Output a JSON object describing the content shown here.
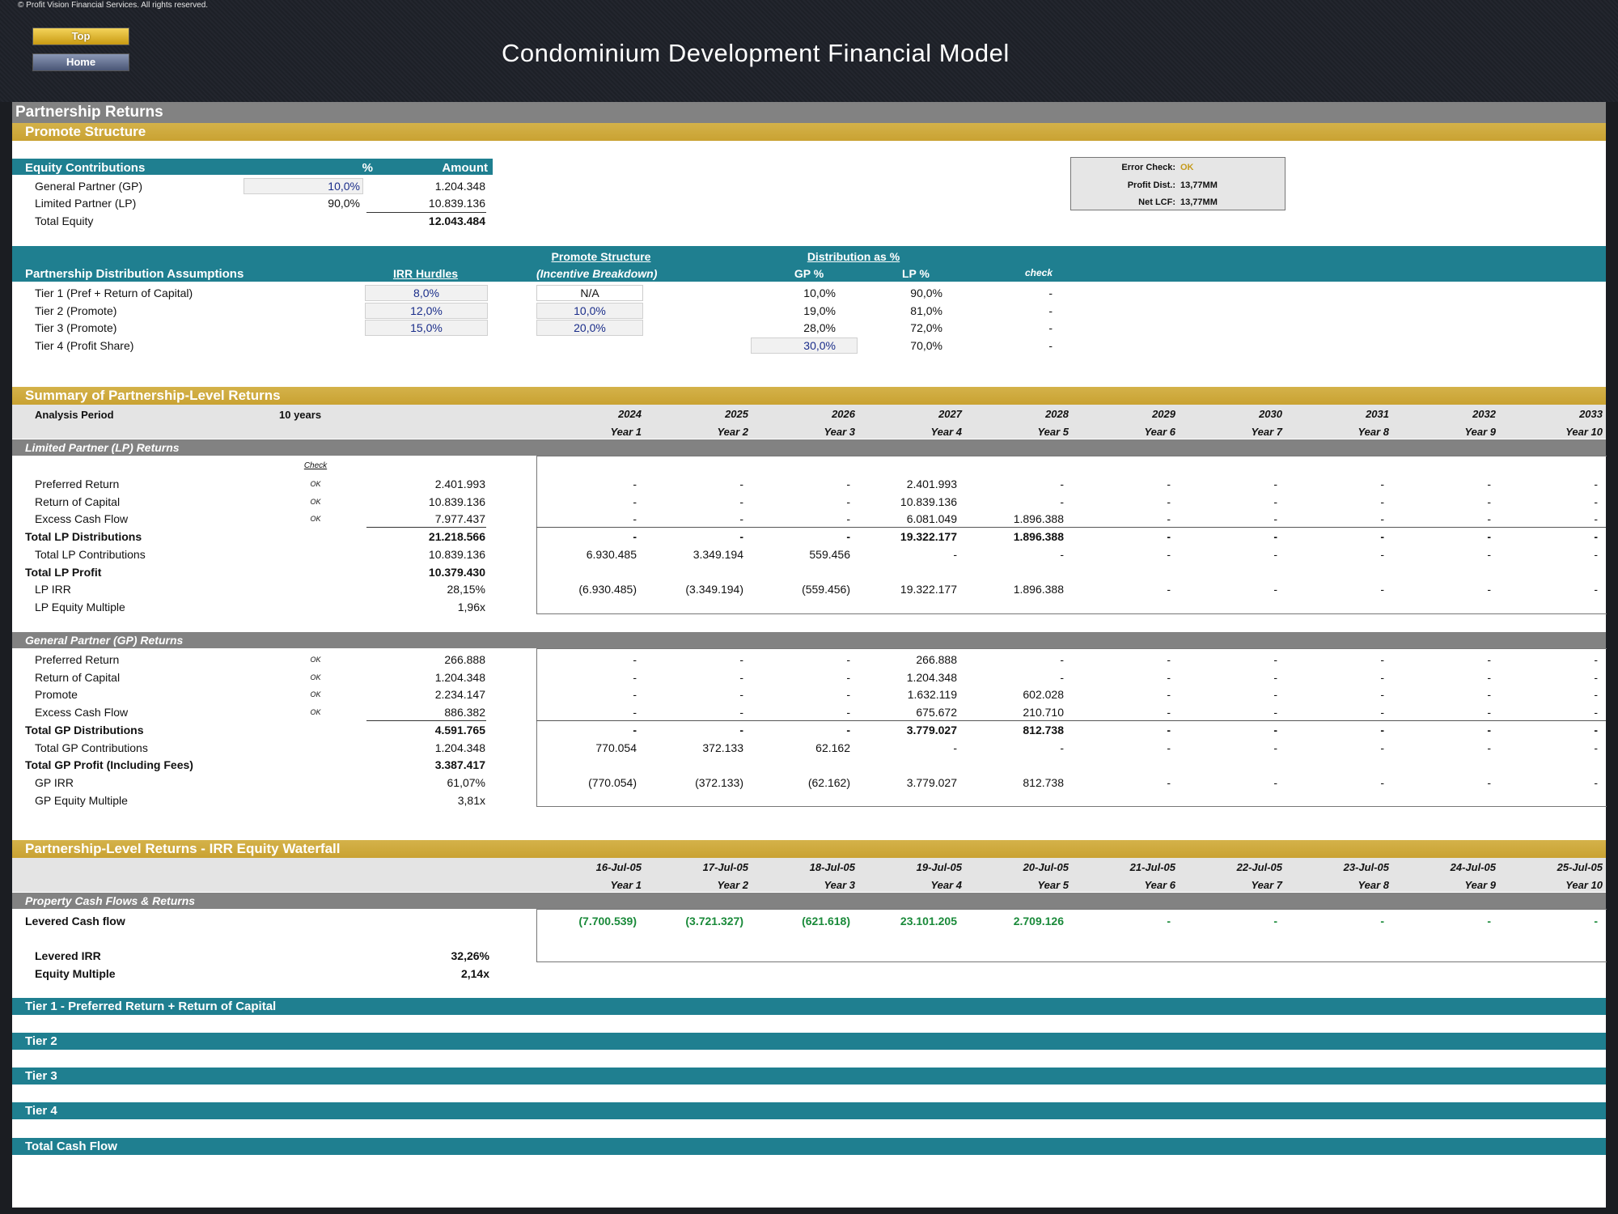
{
  "header": {
    "copyright": "© Profit Vision Financial Services. All rights reserved.",
    "title": "Condominium Development Financial Model",
    "top_button": "Top",
    "home_button": "Home"
  },
  "sections": {
    "partnership_returns": "Partnership Returns",
    "promote_structure": "Promote Structure",
    "summary": "Summary of Partnership-Level Returns",
    "waterfall": "Partnership-Level Returns - IRR Equity Waterfall",
    "tier1": "Tier 1 - Preferred Return + Return of Capital",
    "tier2": "Tier 2",
    "tier3": "Tier 3",
    "tier4": "Tier 4",
    "total_cf": "Total Cash Flow"
  },
  "equity": {
    "header": "Equity Contributions",
    "pct_header": "%",
    "amount_header": "Amount",
    "rows": [
      {
        "label": "General Partner (GP)",
        "pct": "10,0%",
        "amount": "1.204.348"
      },
      {
        "label": "Limited Partner (LP)",
        "pct": "90,0%",
        "amount": "10.839.136"
      }
    ],
    "total_label": "Total Equity",
    "total_amount": "12.043.484"
  },
  "checks": {
    "error_label": "Error Check:",
    "error_value": "OK",
    "profit_label": "Profit Dist.:",
    "profit_value": "13,77MM",
    "netlcf_label": "Net LCF:",
    "netlcf_value": "13,77MM"
  },
  "distribution": {
    "promote_structure_header": "Promote Structure",
    "distribution_header": "Distribution as %",
    "title": "Partnership Distribution Assumptions",
    "irr_header": "IRR Hurdles",
    "incentive_header": "(Incentive Breakdown)",
    "gp_header": "GP %",
    "lp_header": "LP %",
    "check_header": "check",
    "rows": [
      {
        "label": "Tier 1 (Pref + Return of Capital)",
        "irr": "8,0%",
        "incentive": "N/A",
        "gp": "10,0%",
        "lp": "90,0%",
        "check": "-"
      },
      {
        "label": "Tier 2 (Promote)",
        "irr": "12,0%",
        "incentive": "10,0%",
        "gp": "19,0%",
        "lp": "81,0%",
        "check": "-"
      },
      {
        "label": "Tier 3 (Promote)",
        "irr": "15,0%",
        "incentive": "20,0%",
        "gp": "28,0%",
        "lp": "72,0%",
        "check": "-"
      },
      {
        "label": "Tier 4 (Profit Share)",
        "irr": "",
        "incentive": "",
        "gp": "30,0%",
        "lp": "70,0%",
        "check": "-"
      }
    ]
  },
  "summary": {
    "analysis_label": "Analysis Period",
    "analysis_value": "10 years",
    "years": [
      "2024",
      "2025",
      "2026",
      "2027",
      "2028",
      "2029",
      "2030",
      "2031",
      "2032",
      "2033"
    ],
    "year_labels": [
      "Year 1",
      "Year 2",
      "Year 3",
      "Year 4",
      "Year 5",
      "Year 6",
      "Year 7",
      "Year 8",
      "Year 9",
      "Year 10"
    ],
    "lp_title": "Limited Partner (LP) Returns",
    "check_label": "Check",
    "lp_rows": [
      {
        "label": "Preferred Return",
        "check": "OK",
        "total": "2.401.993",
        "vals": [
          "-",
          "-",
          "-",
          "2.401.993",
          "-",
          "-",
          "-",
          "-",
          "-",
          "-"
        ],
        "bold": false
      },
      {
        "label": "Return of Capital",
        "check": "OK",
        "total": "10.839.136",
        "vals": [
          "-",
          "-",
          "-",
          "10.839.136",
          "-",
          "-",
          "-",
          "-",
          "-",
          "-"
        ],
        "bold": false
      },
      {
        "label": "Excess Cash Flow",
        "check": "OK",
        "total": "7.977.437",
        "vals": [
          "-",
          "-",
          "-",
          "6.081.049",
          "1.896.388",
          "-",
          "-",
          "-",
          "-",
          "-"
        ],
        "bold": false
      },
      {
        "label": "Total LP Distributions",
        "check": "",
        "total": "21.218.566",
        "vals": [
          "-",
          "-",
          "-",
          "19.322.177",
          "1.896.388",
          "-",
          "-",
          "-",
          "-",
          "-"
        ],
        "bold": true
      },
      {
        "label": "Total LP Contributions",
        "check": "",
        "total": "10.839.136",
        "vals": [
          "6.930.485",
          "3.349.194",
          "559.456",
          "-",
          "-",
          "-",
          "-",
          "-",
          "-",
          "-"
        ],
        "bold": false
      },
      {
        "label": "Total LP Profit",
        "check": "",
        "total": "10.379.430",
        "vals": [
          "",
          "",
          "",
          "",
          "",
          "",
          "",
          "",
          "",
          ""
        ],
        "bold": true
      },
      {
        "label": "LP IRR",
        "check": "",
        "total": "28,15%",
        "vals": [
          "(6.930.485)",
          "(3.349.194)",
          "(559.456)",
          "19.322.177",
          "1.896.388",
          "-",
          "-",
          "-",
          "-",
          "-"
        ],
        "bold": false
      },
      {
        "label": "LP Equity Multiple",
        "check": "",
        "total": "1,96x",
        "vals": [
          "",
          "",
          "",
          "",
          "",
          "",
          "",
          "",
          "",
          ""
        ],
        "bold": false
      }
    ],
    "gp_title": "General Partner (GP) Returns",
    "gp_rows": [
      {
        "label": "Preferred Return",
        "check": "OK",
        "total": "266.888",
        "vals": [
          "-",
          "-",
          "-",
          "266.888",
          "-",
          "-",
          "-",
          "-",
          "-",
          "-"
        ],
        "bold": false
      },
      {
        "label": "Return of Capital",
        "check": "OK",
        "total": "1.204.348",
        "vals": [
          "-",
          "-",
          "-",
          "1.204.348",
          "-",
          "-",
          "-",
          "-",
          "-",
          "-"
        ],
        "bold": false
      },
      {
        "label": "Promote",
        "check": "OK",
        "total": "2.234.147",
        "vals": [
          "-",
          "-",
          "-",
          "1.632.119",
          "602.028",
          "-",
          "-",
          "-",
          "-",
          "-"
        ],
        "bold": false
      },
      {
        "label": "Excess Cash Flow",
        "check": "OK",
        "total": "886.382",
        "vals": [
          "-",
          "-",
          "-",
          "675.672",
          "210.710",
          "-",
          "-",
          "-",
          "-",
          "-"
        ],
        "bold": false
      },
      {
        "label": "Total GP Distributions",
        "check": "",
        "total": "4.591.765",
        "vals": [
          "-",
          "-",
          "-",
          "3.779.027",
          "812.738",
          "-",
          "-",
          "-",
          "-",
          "-"
        ],
        "bold": true
      },
      {
        "label": "Total GP Contributions",
        "check": "",
        "total": "1.204.348",
        "vals": [
          "770.054",
          "372.133",
          "62.162",
          "-",
          "-",
          "-",
          "-",
          "-",
          "-",
          "-"
        ],
        "bold": false
      },
      {
        "label": "Total GP Profit (Including Fees)",
        "check": "",
        "total": "3.387.417",
        "vals": [
          "",
          "",
          "",
          "",
          "",
          "",
          "",
          "",
          "",
          ""
        ],
        "bold": true
      },
      {
        "label": "GP IRR",
        "check": "",
        "total": "61,07%",
        "vals": [
          "(770.054)",
          "(372.133)",
          "(62.162)",
          "3.779.027",
          "812.738",
          "-",
          "-",
          "-",
          "-",
          "-"
        ],
        "bold": false
      },
      {
        "label": "GP Equity Multiple",
        "check": "",
        "total": "3,81x",
        "vals": [
          "",
          "",
          "",
          "",
          "",
          "",
          "",
          "",
          "",
          ""
        ],
        "bold": false
      }
    ]
  },
  "waterfall": {
    "dates": [
      "16-Jul-05",
      "17-Jul-05",
      "18-Jul-05",
      "19-Jul-05",
      "20-Jul-05",
      "21-Jul-05",
      "22-Jul-05",
      "23-Jul-05",
      "24-Jul-05",
      "25-Jul-05"
    ],
    "year_labels": [
      "Year 1",
      "Year 2",
      "Year 3",
      "Year 4",
      "Year 5",
      "Year 6",
      "Year 7",
      "Year 8",
      "Year 9",
      "Year 10"
    ],
    "pcf_title": "Property Cash Flows & Returns",
    "levered_label": "Levered Cash flow",
    "levered_vals": [
      "(7.700.539)",
      "(3.721.327)",
      "(621.618)",
      "23.101.205",
      "2.709.126",
      "-",
      "-",
      "-",
      "-",
      "-"
    ],
    "irr_label": "Levered IRR",
    "irr_value": "32,26%",
    "multiple_label": "Equity Multiple",
    "multiple_value": "2,14x"
  }
}
